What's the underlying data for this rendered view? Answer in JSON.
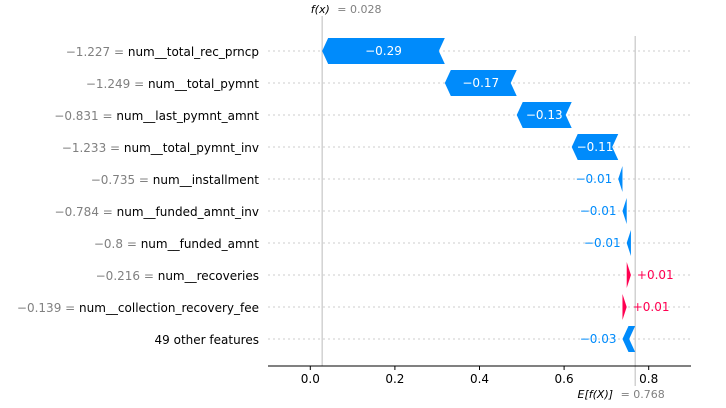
{
  "chart_data": {
    "type": "waterfall",
    "title": "",
    "xlabel": "",
    "ylabel": "",
    "xlim": [
      -0.1,
      0.9
    ],
    "xticks": [
      "0.0",
      "0.2",
      "0.4",
      "0.6",
      "0.8"
    ],
    "xtick_values": [
      0.0,
      0.2,
      0.4,
      0.6,
      0.8
    ],
    "base_value": 0.768,
    "base_label": "E[f(X)]",
    "base_value_text": "= 0.768",
    "output_value": 0.028,
    "output_label": "f(x)",
    "output_value_text": "= 0.028",
    "colors": {
      "negative": "#008bfb",
      "positive": "#ff0051"
    },
    "features": [
      {
        "name": "num__total_rec_prncp",
        "value": "−1.227",
        "shap": -0.29,
        "label": "−0.29"
      },
      {
        "name": "num__total_pymnt",
        "value": "−1.249",
        "shap": -0.17,
        "label": "−0.17"
      },
      {
        "name": "num__last_pymnt_amnt",
        "value": "−0.831",
        "shap": -0.13,
        "label": "−0.13"
      },
      {
        "name": "num__total_pymnt_inv",
        "value": "−1.233",
        "shap": -0.11,
        "label": "−0.11"
      },
      {
        "name": "num__installment",
        "value": "−0.735",
        "shap": -0.01,
        "label": "−0.01"
      },
      {
        "name": "num__funded_amnt_inv",
        "value": "−0.784",
        "shap": -0.01,
        "label": "−0.01"
      },
      {
        "name": "num__funded_amnt",
        "value": "−0.8",
        "shap": -0.01,
        "label": "−0.01"
      },
      {
        "name": "num__recoveries",
        "value": "−0.216",
        "shap": 0.01,
        "label": "+0.01"
      },
      {
        "name": "num__collection_recovery_fee",
        "value": "−0.139",
        "shap": 0.01,
        "label": "+0.01"
      },
      {
        "name": "49 other features",
        "value": "",
        "shap": -0.03,
        "label": "−0.03"
      }
    ]
  }
}
